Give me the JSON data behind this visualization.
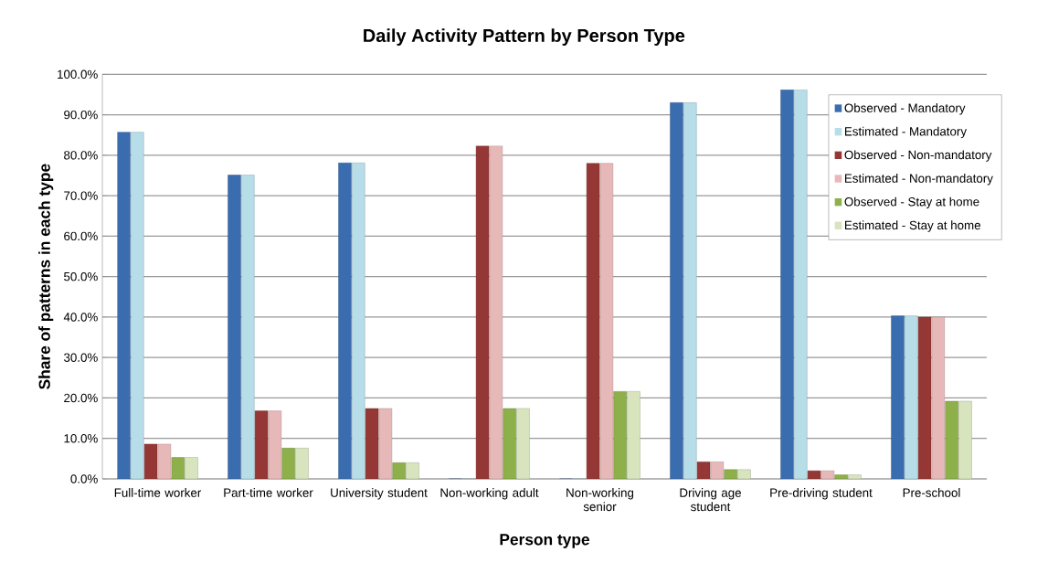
{
  "chart_data": {
    "type": "bar",
    "title": "Daily Activity Pattern by Person Type",
    "xlabel": "Person type",
    "ylabel": "Share of patterns in each type",
    "categories": [
      "Full-time worker",
      "Part-time worker",
      "University student",
      "Non-working adult",
      "Non-working senior",
      "Driving age student",
      "Pre-driving student",
      "Pre-school"
    ],
    "series": [
      {
        "name": "Observed - Mandatory",
        "color": "#3a6cb0",
        "values": [
          85.7,
          75.1,
          78.1,
          0,
          0,
          93.0,
          96.2,
          40.3
        ]
      },
      {
        "name": "Estimated - Mandatory",
        "color": "#b7dde8",
        "values": [
          85.7,
          75.1,
          78.1,
          0,
          0,
          93.0,
          96.2,
          40.3
        ]
      },
      {
        "name": "Observed - Non-mandatory",
        "color": "#953735",
        "values": [
          8.6,
          16.8,
          17.4,
          82.3,
          78.0,
          4.2,
          2.0,
          40.0
        ]
      },
      {
        "name": "Estimated - Non-mandatory",
        "color": "#e6b9b8",
        "values": [
          8.6,
          16.8,
          17.4,
          82.3,
          78.0,
          4.2,
          2.0,
          40.0
        ]
      },
      {
        "name": "Observed - Stay at home",
        "color": "#8db04a",
        "values": [
          5.3,
          7.6,
          4.0,
          17.4,
          21.6,
          2.3,
          1.0,
          19.2
        ]
      },
      {
        "name": "Estimated - Stay at home",
        "color": "#d7e4bd",
        "values": [
          5.3,
          7.6,
          4.0,
          17.4,
          21.6,
          2.3,
          1.0,
          19.2
        ]
      }
    ],
    "ylim": [
      0,
      100
    ],
    "yticks": [
      {
        "value": 0,
        "label": "0.0%"
      },
      {
        "value": 10,
        "label": "10.0%"
      },
      {
        "value": 20,
        "label": "20.0%"
      },
      {
        "value": 30,
        "label": "30.0%"
      },
      {
        "value": 40,
        "label": "40.0%"
      },
      {
        "value": 50,
        "label": "50.0%"
      },
      {
        "value": 60,
        "label": "60.0%"
      },
      {
        "value": 70,
        "label": "70.0%"
      },
      {
        "value": 80,
        "label": "80.0%"
      },
      {
        "value": 90,
        "label": "90.0%"
      },
      {
        "value": 100,
        "label": "100.0%"
      }
    ],
    "grid": "y",
    "legend": "top right"
  }
}
